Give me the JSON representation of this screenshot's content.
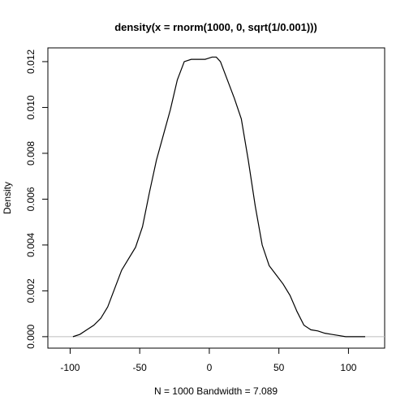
{
  "chart_data": {
    "type": "line",
    "title": "density(x = rnorm(1000, 0, sqrt(1/0.001)))",
    "xlabel": "N = 1000   Bandwidth = 7.089",
    "ylabel": "Density",
    "xlim": [
      -116,
      126
    ],
    "ylim": [
      -0.0005,
      0.0126
    ],
    "x_ticks": [
      -100,
      -50,
      0,
      50,
      100
    ],
    "x_tick_labels": [
      "-100",
      "-50",
      "0",
      "50",
      "100"
    ],
    "y_ticks": [
      0,
      0.002,
      0.004,
      0.006,
      0.008,
      0.01,
      0.012
    ],
    "y_tick_labels": [
      "0.000",
      "0.002",
      "0.004",
      "0.006",
      "0.008",
      "0.010",
      "0.012"
    ],
    "baseline": 0,
    "baseline_color": "#bebebe",
    "line_color": "#000000",
    "grid": false,
    "legend": "none",
    "series": [
      {
        "x": [
          -98,
          -93,
          -88,
          -83,
          -78,
          -73,
          -68,
          -63,
          -58,
          -53,
          -48,
          -43,
          -38,
          -33,
          -28,
          -23,
          -18,
          -13,
          -8,
          -3,
          2,
          5,
          8,
          13,
          18,
          23,
          28,
          33,
          38,
          43,
          48,
          53,
          58,
          63,
          68,
          73,
          78,
          83,
          88,
          93,
          98,
          103,
          108,
          112
        ],
        "y": [
          0.0,
          0.0001,
          0.0003,
          0.0005,
          0.0008,
          0.0013,
          0.0021,
          0.0029,
          0.0034,
          0.0039,
          0.0048,
          0.0063,
          0.0077,
          0.0088,
          0.0099,
          0.0112,
          0.012,
          0.0121,
          0.0121,
          0.0121,
          0.0122,
          0.0122,
          0.012,
          0.0112,
          0.0104,
          0.0095,
          0.0077,
          0.0057,
          0.004,
          0.0031,
          0.0027,
          0.0023,
          0.0018,
          0.0011,
          0.0005,
          0.0003,
          0.00025,
          0.00015,
          0.0001,
          5e-05,
          0.0,
          0.0,
          0.0,
          0.0
        ]
      }
    ]
  }
}
